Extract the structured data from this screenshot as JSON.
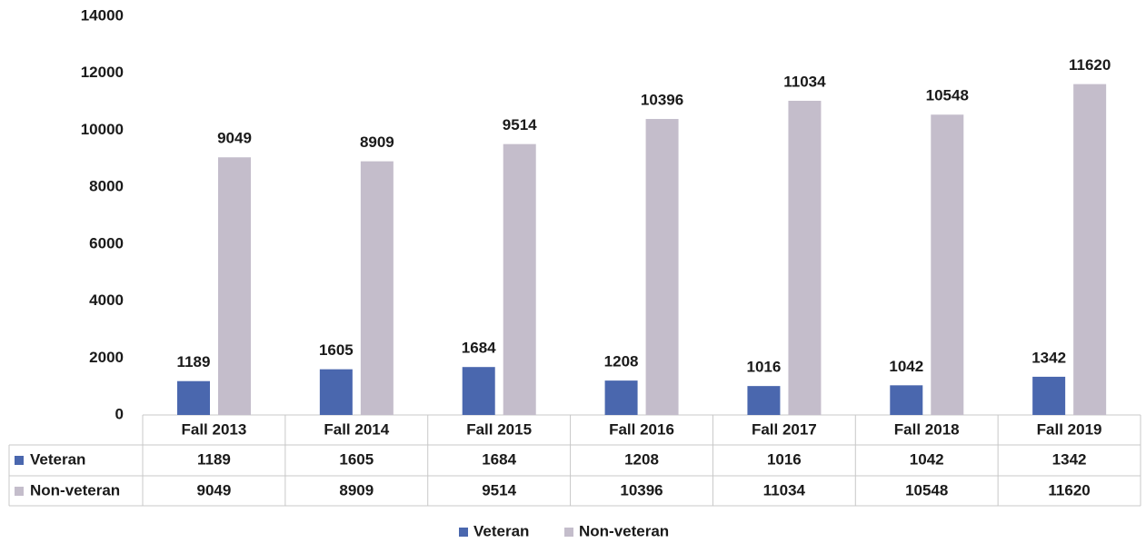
{
  "chart_data": {
    "type": "bar",
    "categories": [
      "Fall 2013",
      "Fall 2014",
      "Fall 2015",
      "Fall 2016",
      "Fall 2017",
      "Fall 2018",
      "Fall 2019"
    ],
    "series": [
      {
        "name": "Veteran",
        "color": "#4a67ae",
        "values": [
          1189,
          1605,
          1684,
          1208,
          1016,
          1042,
          1342
        ]
      },
      {
        "name": "Non-veteran",
        "color": "#c4bdcb",
        "values": [
          9049,
          8909,
          9514,
          10396,
          11034,
          10548,
          11620
        ]
      }
    ],
    "ylim": [
      0,
      14000
    ],
    "yticks": [
      0,
      2000,
      4000,
      6000,
      8000,
      10000,
      12000,
      14000
    ],
    "data_table": true,
    "legend": "bottom"
  }
}
